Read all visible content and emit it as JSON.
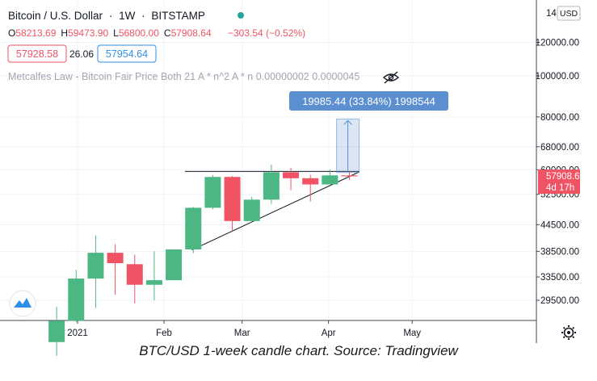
{
  "header": {
    "symbol": "Bitcoin / U.S. Dollar",
    "sep1": "·",
    "interval": "1W",
    "sep2": "·",
    "exchange": "BITSTAMP",
    "ohlc": [
      {
        "k": "O",
        "v": "58213.69"
      },
      {
        "k": "H",
        "v": "59473.90"
      },
      {
        "k": "L",
        "v": "56800.00"
      },
      {
        "k": "C",
        "v": "57908.64"
      }
    ],
    "change": "−303.54 (−0.52%)",
    "bid": "57928.58",
    "spread": "26.06",
    "ask": "57954.64",
    "indicator": "Metcalfes Law - Bitcoin Fair Price Both 21 A * n^2 A * n 0.00000002 0.0000045"
  },
  "measure_label": "19985.44 (33.84%) 1998544",
  "price_tag": {
    "price": "57908.64",
    "countdown": "4d 17h"
  },
  "currency_badge": "USD",
  "axis_top_partial": "14",
  "caption": "BTC/USD 1-week candle chart. Source: Tradingview",
  "colors": {
    "up": "#4cb782",
    "down": "#ef5364",
    "measure": "#5b8fd0",
    "accent": "#26a69a"
  },
  "chart_data": {
    "type": "candlestick",
    "scale": "log",
    "y_ticks": [
      29500,
      33500,
      38500,
      44500,
      52500,
      60000,
      68000,
      80000,
      100000,
      120000
    ],
    "y_tick_labels": [
      "29500.00",
      "33500.00",
      "38500.00",
      "44500.00",
      "52500.00",
      "60000.00",
      "68000.00",
      "80000.00",
      "100000.00",
      "120000.00"
    ],
    "x_ticks": [
      {
        "label": "2021",
        "date": "2021-01-01"
      },
      {
        "label": "Feb",
        "date": "2021-02-01"
      },
      {
        "label": "Mar",
        "date": "2021-03-01"
      },
      {
        "label": "Apr",
        "date": "2021-04-01"
      },
      {
        "label": "May",
        "date": "2021-05-01"
      }
    ],
    "candles": [
      {
        "date": "2020-12-21",
        "o": 23500,
        "h": 28500,
        "l": 21800,
        "c": 26400
      },
      {
        "date": "2020-12-28",
        "o": 26400,
        "h": 34800,
        "l": 26200,
        "c": 33200
      },
      {
        "date": "2021-01-04",
        "o": 33200,
        "h": 42000,
        "l": 28300,
        "c": 38200
      },
      {
        "date": "2021-01-11",
        "o": 38200,
        "h": 40000,
        "l": 30400,
        "c": 36100
      },
      {
        "date": "2021-01-18",
        "o": 35900,
        "h": 37800,
        "l": 29000,
        "c": 32100
      },
      {
        "date": "2021-01-25",
        "o": 32100,
        "h": 38500,
        "l": 29500,
        "c": 32900
      },
      {
        "date": "2021-02-01",
        "o": 32900,
        "h": 38900,
        "l": 32900,
        "c": 38900
      },
      {
        "date": "2021-02-08",
        "o": 38900,
        "h": 49000,
        "l": 38100,
        "c": 48800
      },
      {
        "date": "2021-02-15",
        "o": 48800,
        "h": 58300,
        "l": 48400,
        "c": 57700
      },
      {
        "date": "2021-02-22",
        "o": 57700,
        "h": 58000,
        "l": 43000,
        "c": 45400
      },
      {
        "date": "2021-03-01",
        "o": 45400,
        "h": 51800,
        "l": 45000,
        "c": 51000
      },
      {
        "date": "2021-03-08",
        "o": 51000,
        "h": 61700,
        "l": 49800,
        "c": 59200
      },
      {
        "date": "2021-03-15",
        "o": 59200,
        "h": 60600,
        "l": 53700,
        "c": 57300
      },
      {
        "date": "2021-03-22",
        "o": 57300,
        "h": 58400,
        "l": 50500,
        "c": 55400
      },
      {
        "date": "2021-03-29",
        "o": 55400,
        "h": 60100,
        "l": 55400,
        "c": 58200
      },
      {
        "date": "2021-04-05",
        "o": 58200,
        "h": 59500,
        "l": 56800,
        "c": 57900
      }
    ],
    "annotations": {
      "resistance_price": 59473.9,
      "support_from": {
        "date": "2021-02-11",
        "price": 38800
      },
      "support_to": {
        "date": "2021-04-12",
        "price": 59300
      },
      "measure_from_price": 59100,
      "measure_to_price": 79100
    }
  }
}
